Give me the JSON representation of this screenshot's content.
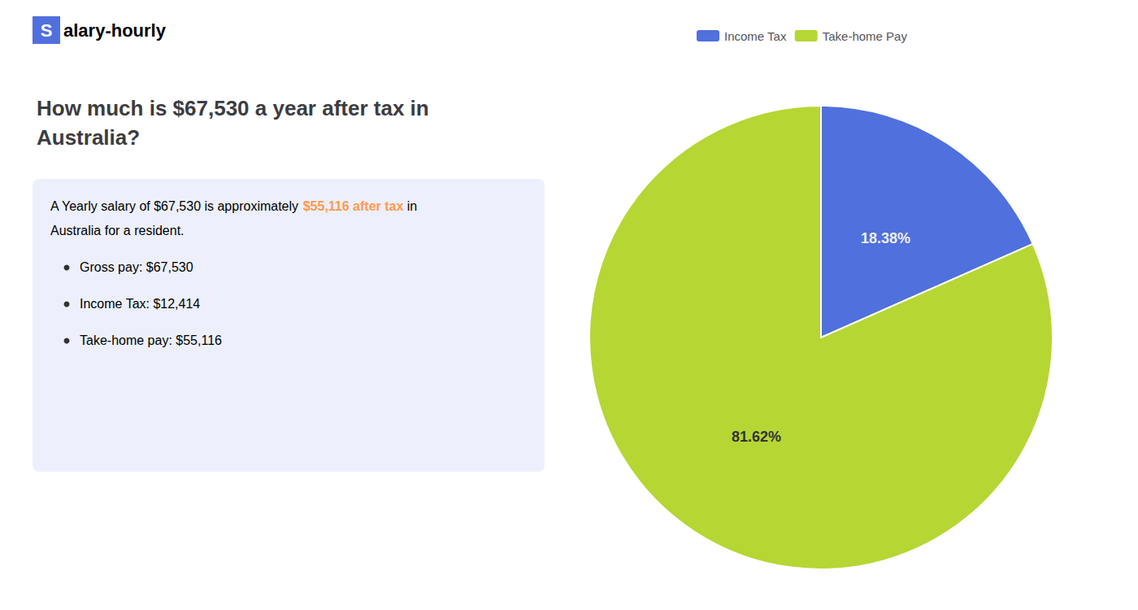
{
  "chart_data": {
    "type": "pie",
    "title": "How much is $67,530 a year after tax in\nAustralia?",
    "categories": [
      "Income Tax",
      "Take-home Pay"
    ],
    "values": [
      18.38,
      81.62
    ],
    "value_labels": [
      "18.38%",
      "81.62%"
    ],
    "data_labels": true,
    "legend": "top",
    "annotations": [
      [
        "S",
        "alary-hourly"
      ],
      [
        "A Yearly salary of $67,530 is approximately ",
        "$55,116 after tax",
        " in"
      ],
      [
        "Australia for a resident."
      ],
      [
        "Gross pay: $67,530"
      ],
      [
        "Income Tax: $12,414"
      ],
      [
        "Take-home pay: $55,116"
      ]
    ]
  }
}
